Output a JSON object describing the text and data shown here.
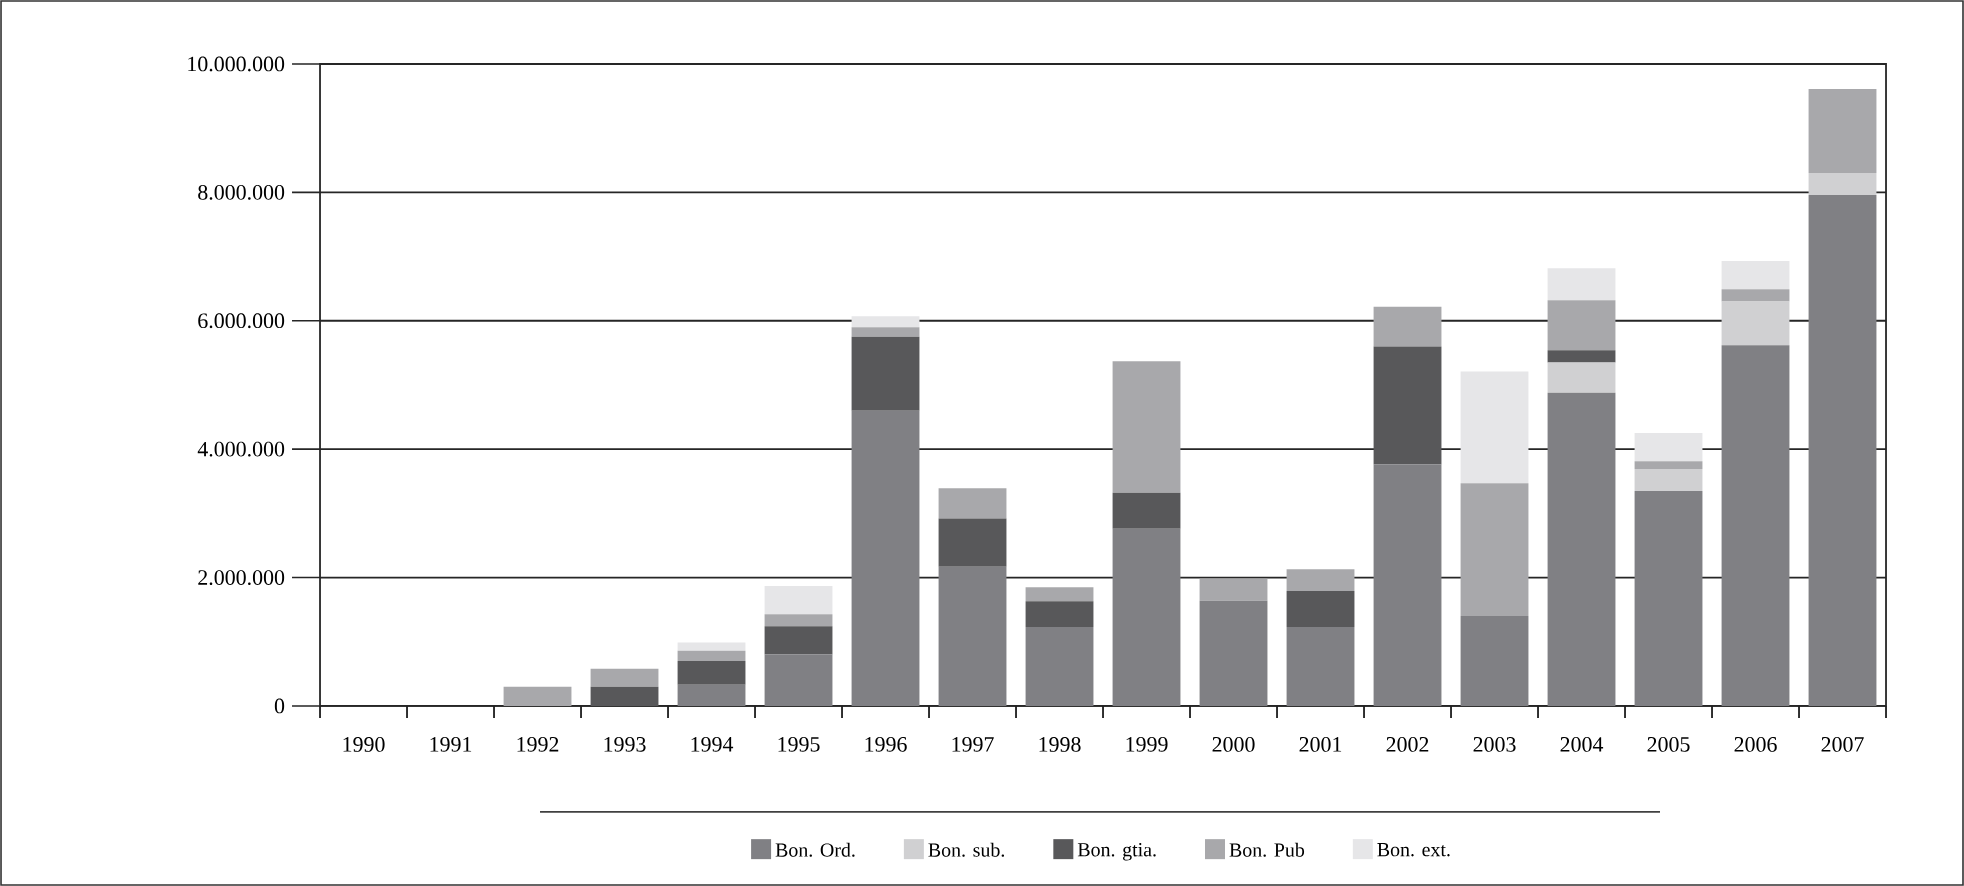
{
  "chart_data": {
    "type": "bar",
    "stacked": true,
    "categories": [
      "1990",
      "1991",
      "1992",
      "1993",
      "1994",
      "1995",
      "1996",
      "1997",
      "1998",
      "1999",
      "2000",
      "2001",
      "2002",
      "2003",
      "2004",
      "2005",
      "2006",
      "2007"
    ],
    "series": [
      {
        "name": "Bon. Ord.",
        "color": "#808084",
        "values": [
          0,
          0,
          0,
          0,
          330000,
          800000,
          4600000,
          2170000,
          1230000,
          2760000,
          1640000,
          1230000,
          3760000,
          1400000,
          4880000,
          3350000,
          5620000,
          7960000
        ]
      },
      {
        "name": "Bon. sub.",
        "color": "#d0d0d2",
        "values": [
          0,
          0,
          0,
          0,
          0,
          0,
          0,
          0,
          0,
          0,
          0,
          0,
          0,
          0,
          470000,
          340000,
          680000,
          340000
        ]
      },
      {
        "name": "Bon. gtia.",
        "color": "#58585a",
        "values": [
          0,
          0,
          0,
          300000,
          370000,
          440000,
          1150000,
          750000,
          400000,
          560000,
          0,
          560000,
          1840000,
          0,
          190000,
          0,
          0,
          0
        ]
      },
      {
        "name": "Bon. Pub",
        "color": "#a8a8ab",
        "values": [
          0,
          0,
          300000,
          280000,
          160000,
          190000,
          150000,
          470000,
          220000,
          2050000,
          340000,
          340000,
          620000,
          2070000,
          780000,
          120000,
          190000,
          1310000
        ]
      },
      {
        "name": "Bon. ext.",
        "color": "#e6e6e8",
        "values": [
          0,
          0,
          0,
          0,
          130000,
          440000,
          170000,
          0,
          0,
          0,
          0,
          0,
          0,
          1740000,
          500000,
          440000,
          440000,
          0
        ]
      }
    ],
    "ylim": [
      0,
      10000000
    ],
    "yticks": [
      0,
      {
        "value": 2000000,
        "label": "2.000.000"
      },
      {
        "value": 4000000,
        "label": "4.000.000"
      },
      {
        "value": 6000000,
        "label": "6.000.000"
      },
      {
        "value": 8000000,
        "label": "8.000.000"
      },
      {
        "value": 10000000,
        "label": "10.000.000"
      }
    ],
    "grid": "y",
    "legend": "bottom"
  }
}
